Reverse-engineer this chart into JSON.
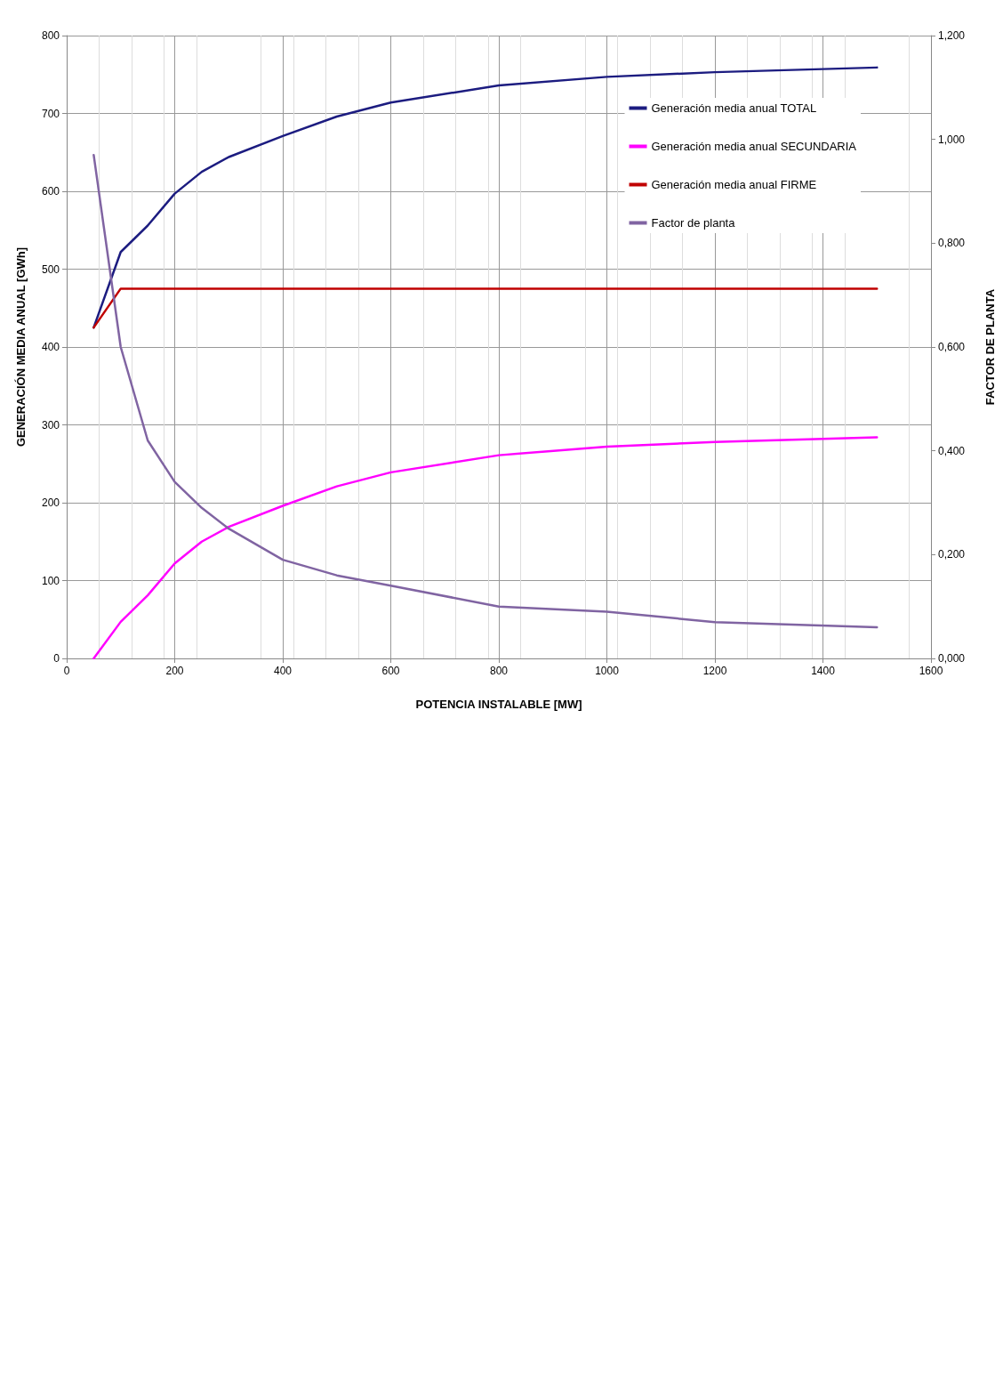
{
  "chart_data": {
    "type": "line",
    "xlabel": "POTENCIA INSTALABLE [MW]",
    "ylabel": "GENERACIÓN MEDIA ANUAL [GWh]",
    "y2label": "FACTOR DE PLANTA",
    "x": [
      50,
      100,
      150,
      200,
      250,
      300,
      400,
      500,
      600,
      800,
      1000,
      1200,
      1500
    ],
    "series": [
      {
        "name": "Generación media anual TOTAL",
        "color": "#1c1c80",
        "values": [
          425,
          522,
          556,
          597,
          625,
          644,
          671,
          696,
          714,
          736,
          747,
          753,
          759
        ]
      },
      {
        "name": "Generación media anual SECUNDARIA",
        "color": "#ff00ff",
        "values": [
          0,
          47,
          81,
          122,
          150,
          169,
          196,
          221,
          239,
          261,
          272,
          278,
          284
        ]
      },
      {
        "name": "Generación media anual FIRME",
        "color": "#c00000",
        "values": [
          425,
          475,
          475,
          475,
          475,
          475,
          475,
          475,
          475,
          475,
          475,
          475,
          475
        ]
      },
      {
        "name": "Factor de planta",
        "color": "#8064a2",
        "axis": "y2",
        "values": [
          0.97,
          0.6,
          0.42,
          0.34,
          0.29,
          0.25,
          0.19,
          0.16,
          0.14,
          0.1,
          0.09,
          0.07,
          0.06
        ]
      }
    ],
    "xlim": [
      0,
      1600
    ],
    "xticks": [
      0,
      200,
      400,
      600,
      800,
      1000,
      1200,
      1400,
      1600
    ],
    "ylim": [
      0,
      800
    ],
    "yticks": [
      0,
      100,
      200,
      300,
      400,
      500,
      600,
      700,
      800
    ],
    "y2lim": [
      0,
      1.2
    ],
    "y2ticks": [
      {
        "value": 0,
        "label": "0,000"
      },
      {
        "value": 0.2,
        "label": "0,200"
      },
      {
        "value": 0.4,
        "label": "0,400"
      },
      {
        "value": 0.6,
        "label": "0,600"
      },
      {
        "value": 0.8,
        "label": "0,800"
      },
      {
        "value": 1.0,
        "label": "1,000"
      },
      {
        "value": 1.2,
        "label": "1,200"
      }
    ],
    "grid": true,
    "legend": "top right",
    "marker": "none",
    "line_style": "solid"
  }
}
